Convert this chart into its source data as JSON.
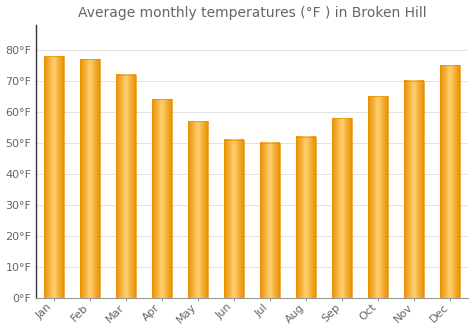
{
  "title": "Average monthly temperatures (°F ) in Broken Hill",
  "months": [
    "Jan",
    "Feb",
    "Mar",
    "Apr",
    "May",
    "Jun",
    "Jul",
    "Aug",
    "Sep",
    "Oct",
    "Nov",
    "Dec"
  ],
  "values": [
    78,
    77,
    72,
    64,
    57,
    51,
    50,
    52,
    58,
    65,
    70,
    75
  ],
  "bar_color_main": "#FFC03A",
  "bar_color_light": "#FFD070",
  "bar_color_dark": "#E89000",
  "background_color": "#FFFFFF",
  "grid_color": "#DDDDDD",
  "ylim": [
    0,
    88
  ],
  "yticks": [
    0,
    10,
    20,
    30,
    40,
    50,
    60,
    70,
    80
  ],
  "ytick_labels": [
    "0°F",
    "10°F",
    "20°F",
    "30°F",
    "40°F",
    "50°F",
    "60°F",
    "70°F",
    "80°F"
  ],
  "title_fontsize": 10,
  "tick_fontsize": 8,
  "font_color": "#666666",
  "bar_width": 0.55
}
